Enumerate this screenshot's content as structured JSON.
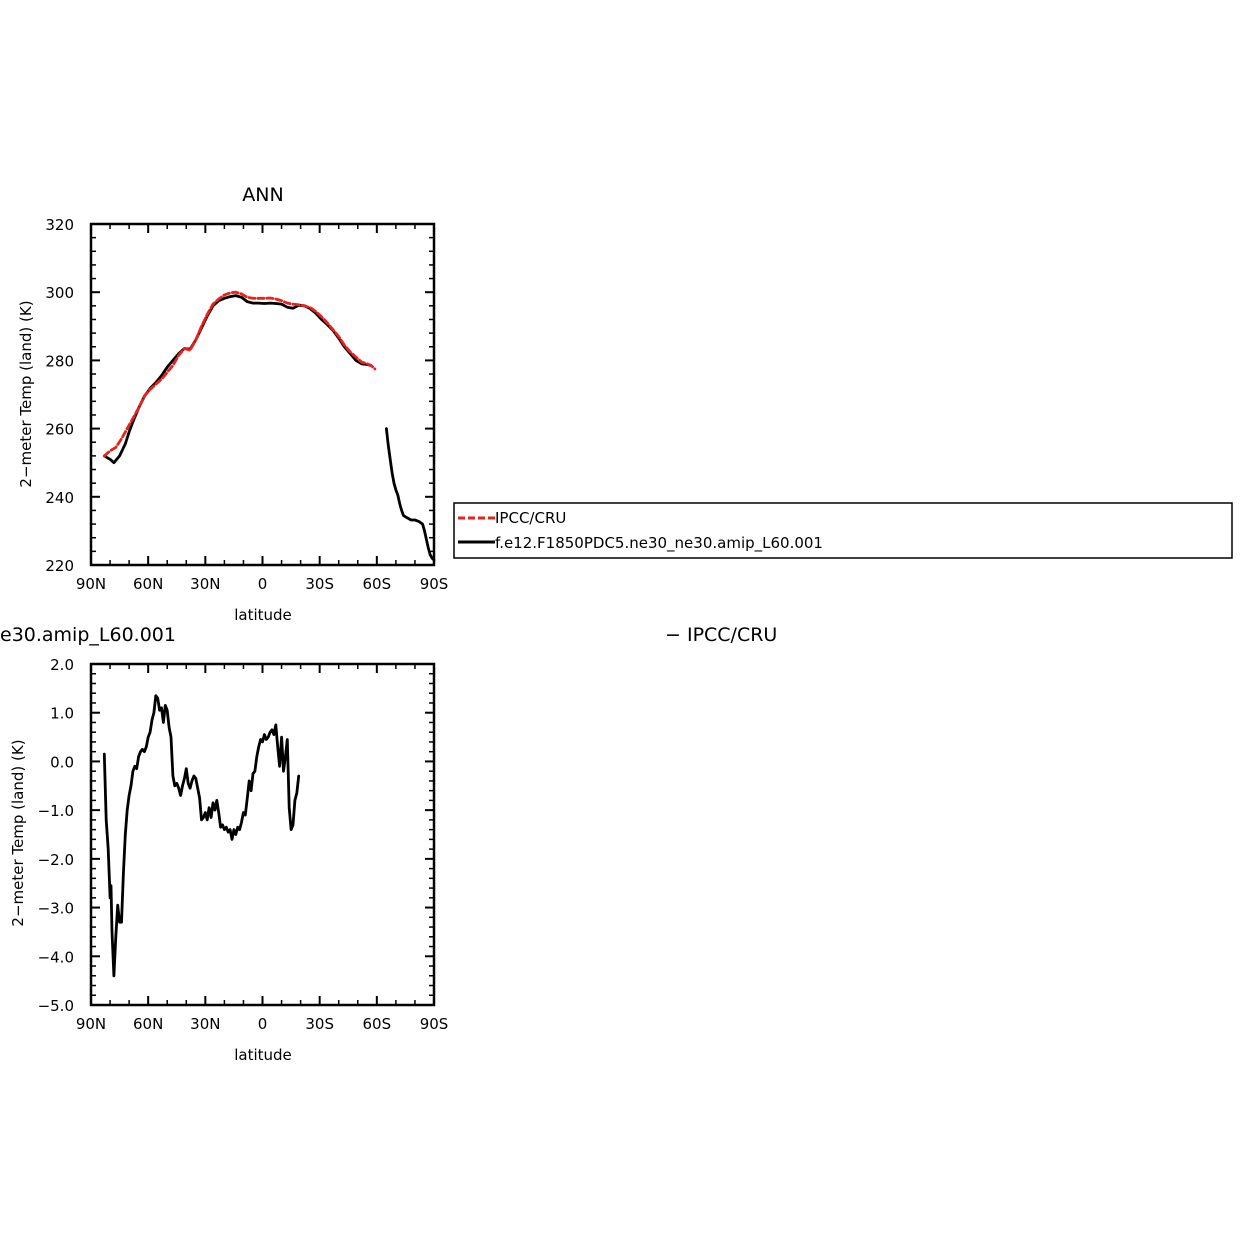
{
  "chart_data": [
    {
      "type": "line",
      "title": "ANN",
      "xlabel": "latitude",
      "ylabel": "2−meter Temp (land) (K)",
      "xlim": [
        90,
        -90
      ],
      "ylim": [
        220,
        320
      ],
      "xticks": [
        90,
        60,
        30,
        0,
        -30,
        -60,
        -90
      ],
      "xtick_labels": [
        "90N",
        "60N",
        "30N",
        "0",
        "30S",
        "60S",
        "90S"
      ],
      "yticks": [
        220,
        240,
        260,
        280,
        300,
        320
      ],
      "ytick_labels": [
        "220",
        "240",
        "260",
        "280",
        "300",
        "320"
      ],
      "legend_position": "right",
      "series": [
        {
          "name": "IPCC/CRU",
          "color": "#e8231e",
          "style": "dashed",
          "segments": [
            [
              [
                83,
                252
              ],
              [
                80,
                253.5
              ],
              [
                77,
                254.5
              ],
              [
                74,
                257
              ],
              [
                71,
                260
              ],
              [
                68,
                263
              ],
              [
                65,
                266
              ],
              [
                62,
                269.5
              ],
              [
                59,
                271.5
              ],
              [
                56,
                273
              ],
              [
                53,
                274.5
              ],
              [
                50,
                276.5
              ],
              [
                47,
                278.5
              ],
              [
                44,
                281.5
              ],
              [
                41,
                283.5
              ],
              [
                38,
                283
              ],
              [
                35,
                286
              ],
              [
                32,
                290
              ],
              [
                29,
                293.5
              ],
              [
                26,
                296.5
              ],
              [
                23,
                298
              ],
              [
                20,
                299.2
              ],
              [
                17,
                299.8
              ],
              [
                14,
                300
              ],
              [
                11,
                299.5
              ],
              [
                8,
                298.5
              ],
              [
                5,
                298.2
              ],
              [
                2,
                298.2
              ],
              [
                -1,
                298.2
              ],
              [
                -4,
                298.3
              ],
              [
                -7,
                298
              ],
              [
                -10,
                297.5
              ],
              [
                -13,
                296.8
              ],
              [
                -16,
                296.5
              ],
              [
                -19,
                296.3
              ],
              [
                -22,
                296
              ],
              [
                -25,
                295.5
              ],
              [
                -28,
                294.3
              ],
              [
                -31,
                292.8
              ],
              [
                -34,
                291
              ],
              [
                -37,
                289
              ],
              [
                -40,
                287
              ],
              [
                -43,
                284.5
              ],
              [
                -46,
                282.5
              ],
              [
                -49,
                281
              ],
              [
                -52,
                279.5
              ],
              [
                -55,
                279
              ],
              [
                -57,
                278.5
              ],
              [
                -59,
                277.5
              ]
            ]
          ]
        },
        {
          "name": "f.e12.F1850PDC5.ne30_ne30.amip_L60.001",
          "color": "#000000",
          "style": "solid",
          "segments": [
            [
              [
                83,
                252
              ],
              [
                80,
                251
              ],
              [
                78,
                250
              ],
              [
                75,
                252
              ],
              [
                72,
                255.5
              ],
              [
                70,
                259
              ],
              [
                68,
                262
              ],
              [
                65,
                266
              ],
              [
                62,
                269.5
              ],
              [
                59,
                271.8
              ],
              [
                56,
                273.5
              ],
              [
                53,
                275.5
              ],
              [
                50,
                278
              ],
              [
                47,
                280
              ],
              [
                44,
                282
              ],
              [
                41,
                283.5
              ],
              [
                38,
                283.3
              ],
              [
                35,
                286
              ],
              [
                32,
                289.5
              ],
              [
                29,
                293
              ],
              [
                26,
                296
              ],
              [
                23,
                297.5
              ],
              [
                20,
                298.2
              ],
              [
                17,
                298.7
              ],
              [
                14,
                299
              ],
              [
                11,
                298.5
              ],
              [
                8,
                297.2
              ],
              [
                5,
                296.8
              ],
              [
                2,
                296.8
              ],
              [
                -1,
                296.7
              ],
              [
                -4,
                296.8
              ],
              [
                -7,
                296.7
              ],
              [
                -10,
                296.5
              ],
              [
                -13,
                295.6
              ],
              [
                -16,
                295.3
              ],
              [
                -19,
                296.2
              ],
              [
                -22,
                296
              ],
              [
                -25,
                295.2
              ],
              [
                -28,
                293.8
              ],
              [
                -31,
                292
              ],
              [
                -34,
                290.5
              ],
              [
                -37,
                288.8
              ],
              [
                -40,
                286.5
              ],
              [
                -43,
                284
              ],
              [
                -46,
                282
              ],
              [
                -49,
                280
              ],
              [
                -52,
                279
              ],
              [
                -55,
                278.8
              ],
              [
                -57,
                278.5
              ]
            ],
            [
              [
                -65,
                260
              ],
              [
                -66,
                255
              ],
              [
                -67,
                251
              ],
              [
                -68,
                247
              ],
              [
                -69,
                244
              ],
              [
                -70,
                242
              ],
              [
                -71,
                240.5
              ],
              [
                -72,
                238
              ],
              [
                -73,
                236
              ],
              [
                -74,
                234.5
              ],
              [
                -76,
                233.8
              ],
              [
                -78,
                233.2
              ],
              [
                -80,
                233.2
              ],
              [
                -82,
                232.8
              ],
              [
                -84,
                232
              ],
              [
                -85,
                230
              ],
              [
                -86,
                227.5
              ],
              [
                -87,
                225
              ],
              [
                -88,
                223
              ],
              [
                -89,
                222
              ],
              [
                -90,
                221.5
              ]
            ]
          ]
        }
      ]
    },
    {
      "type": "line",
      "title": "e30.amip_L60.001",
      "right_title": "− IPCC/CRU",
      "xlabel": "latitude",
      "ylabel": "2−meter Temp (land) (K)",
      "xlim": [
        90,
        -90
      ],
      "ylim": [
        -5,
        2
      ],
      "xticks": [
        90,
        60,
        30,
        0,
        -30,
        -60,
        -90
      ],
      "xtick_labels": [
        "90N",
        "60N",
        "30N",
        "0",
        "30S",
        "60S",
        "90S"
      ],
      "yticks": [
        -5,
        -4,
        -3,
        -2,
        -1,
        0,
        1,
        2
      ],
      "ytick_labels": [
        "−5.0",
        "−4.0",
        "−3.0",
        "−2.0",
        "−1.0",
        "0.0",
        "1.0",
        "2.0"
      ],
      "series": [
        {
          "color": "#000000",
          "style": "solid",
          "segments": [
            [
              [
                83,
                0.15
              ],
              [
                82,
                -1.2
              ],
              [
                81,
                -1.8
              ],
              [
                80,
                -2.8
              ],
              [
                79.5,
                -2.55
              ],
              [
                79,
                -3.5
              ],
              [
                78,
                -4.4
              ],
              [
                77,
                -3.6
              ],
              [
                76,
                -2.95
              ],
              [
                75,
                -3.3
              ],
              [
                74,
                -3.3
              ],
              [
                73,
                -2.3
              ],
              [
                72,
                -1.5
              ],
              [
                71,
                -1.0
              ],
              [
                70,
                -0.7
              ],
              [
                69,
                -0.5
              ],
              [
                68,
                -0.2
              ],
              [
                67,
                -0.1
              ],
              [
                66,
                -0.15
              ],
              [
                65,
                0.1
              ],
              [
                64,
                0.2
              ],
              [
                63,
                0.25
              ],
              [
                62,
                0.2
              ],
              [
                61,
                0.3
              ],
              [
                60,
                0.5
              ],
              [
                59,
                0.6
              ],
              [
                58,
                0.85
              ],
              [
                57,
                1.0
              ],
              [
                56,
                1.35
              ],
              [
                55,
                1.3
              ],
              [
                54,
                1.05
              ],
              [
                53,
                1.1
              ],
              [
                52,
                0.8
              ],
              [
                51,
                1.15
              ],
              [
                50,
                1.05
              ],
              [
                49,
                0.7
              ],
              [
                48,
                0.5
              ],
              [
                47,
                -0.3
              ],
              [
                46,
                -0.5
              ],
              [
                45,
                -0.45
              ],
              [
                44,
                -0.55
              ],
              [
                43,
                -0.7
              ],
              [
                42,
                -0.5
              ],
              [
                41,
                -0.35
              ],
              [
                40,
                -0.15
              ],
              [
                39,
                -0.45
              ],
              [
                38,
                -0.55
              ],
              [
                37,
                -0.4
              ],
              [
                36,
                -0.3
              ],
              [
                35,
                -0.35
              ],
              [
                34,
                -0.55
              ],
              [
                33,
                -0.75
              ],
              [
                32,
                -1.2
              ],
              [
                31,
                -1.15
              ],
              [
                30,
                -1.05
              ],
              [
                29,
                -1.2
              ],
              [
                28,
                -0.95
              ],
              [
                27,
                -1.15
              ],
              [
                26,
                -0.85
              ],
              [
                25,
                -1.0
              ],
              [
                24,
                -0.8
              ],
              [
                23,
                -1.05
              ],
              [
                22,
                -1.35
              ],
              [
                21,
                -1.3
              ],
              [
                20,
                -1.4
              ],
              [
                19,
                -1.35
              ],
              [
                18,
                -1.45
              ],
              [
                17,
                -1.4
              ],
              [
                16,
                -1.6
              ],
              [
                15,
                -1.4
              ],
              [
                14,
                -1.5
              ],
              [
                13,
                -1.35
              ],
              [
                12,
                -1.4
              ],
              [
                11,
                -1.25
              ],
              [
                10,
                -1.05
              ],
              [
                9,
                -1.1
              ],
              [
                8,
                -0.75
              ],
              [
                7,
                -0.4
              ],
              [
                6,
                -0.6
              ],
              [
                5,
                -0.25
              ],
              [
                4,
                -0.2
              ],
              [
                3,
                0.1
              ],
              [
                2,
                0.3
              ],
              [
                1,
                0.45
              ],
              [
                0,
                0.4
              ],
              [
                -1,
                0.55
              ],
              [
                -2,
                0.45
              ],
              [
                -3,
                0.5
              ],
              [
                -4,
                0.6
              ],
              [
                -5,
                0.65
              ],
              [
                -6,
                0.55
              ],
              [
                -7,
                0.75
              ],
              [
                -8,
                0.3
              ],
              [
                -9,
                -0.1
              ],
              [
                -10,
                0.5
              ],
              [
                -11,
                -0.2
              ],
              [
                -12,
                0.1
              ],
              [
                -13,
                0.45
              ],
              [
                -14,
                -0.95
              ],
              [
                -15,
                -1.4
              ],
              [
                -16,
                -1.3
              ],
              [
                -17,
                -0.8
              ],
              [
                -18,
                -0.65
              ],
              [
                -19,
                -0.3
              ]
            ]
          ]
        }
      ]
    }
  ]
}
